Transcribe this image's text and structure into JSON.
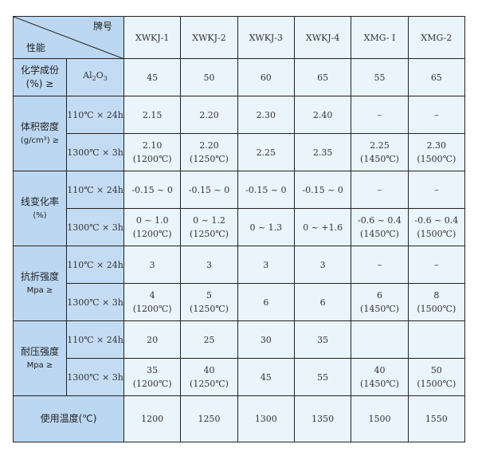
{
  "header": {
    "brand_label": "牌号",
    "property_label": "性能",
    "grades": [
      "XWKJ-1",
      "XWKJ-2",
      "XWKJ-3",
      "XWKJ-4",
      "XMG- Ⅰ",
      "XMG-2"
    ]
  },
  "rows": {
    "chem": {
      "label": "化学成份",
      "unit": "(%) ≥",
      "cond": "Al",
      "sub1": "2",
      "mid": "O",
      "sub2": "3",
      "values": [
        "45",
        "50",
        "60",
        "65",
        "55",
        "65"
      ]
    },
    "density": {
      "label": "体积密度",
      "unit": "(g/cm³) ≥",
      "cond1": "110℃ × 24h",
      "cond2": "1300℃ × 3h",
      "v1": [
        "2.15",
        "2.20",
        "2.30",
        "2.40",
        "–",
        "–"
      ],
      "v2": [
        "2.10",
        "2.20",
        "2.25",
        "2.35",
        "2.25",
        "2.30"
      ],
      "t2": [
        "(1200℃)",
        "(1250℃)",
        "",
        "",
        "(1450℃)",
        "(1500℃)"
      ]
    },
    "linear": {
      "label": "线变化率",
      "unit": "(%)",
      "cond1": "110℃ × 24h",
      "cond2": "1300℃ × 3h",
      "v1": [
        "-0.15 ~ 0",
        "-0.15 ~ 0",
        "-0.15 ~ 0",
        "-0.15 ~ 0",
        "–",
        "–"
      ],
      "v2": [
        "0 ~ 1.0",
        "0 ~ 1.2",
        "0 ~ 1.3",
        "0 ~ +1.6",
        "-0.6 ~ 0.4",
        "-0.6 ~ 0.4"
      ],
      "t2": [
        "(1200℃)",
        "(1250℃)",
        "",
        "",
        "(1450℃)",
        "(1500℃)"
      ]
    },
    "flex": {
      "label": "抗折强度",
      "unit": "Mpa ≥",
      "cond1": "110℃ × 24h",
      "cond2": "1300℃ × 3h",
      "v1": [
        "3",
        "3",
        "3",
        "3",
        "–",
        "–"
      ],
      "v2": [
        "4",
        "5",
        "6",
        "6",
        "6",
        "8"
      ],
      "t2": [
        "(1200℃)",
        "(1250℃)",
        "",
        "",
        "(1450℃)",
        "(1500℃)"
      ]
    },
    "comp": {
      "label": "耐压强度",
      "unit": "Mpa ≥",
      "cond1": "110℃ × 24h",
      "cond2": "1300℃ × 3h",
      "v1": [
        "20",
        "25",
        "30",
        "35",
        "",
        ""
      ],
      "v2": [
        "35",
        "40",
        "45",
        "55",
        "40",
        "50"
      ],
      "t2": [
        "(1200℃)",
        "(1250℃)",
        "",
        "",
        "(1450℃)",
        "(1500℃)"
      ]
    },
    "use": {
      "label": "使用温度(℃)",
      "values": [
        "1200",
        "1250",
        "1300",
        "1350",
        "1500",
        "1550"
      ]
    }
  }
}
